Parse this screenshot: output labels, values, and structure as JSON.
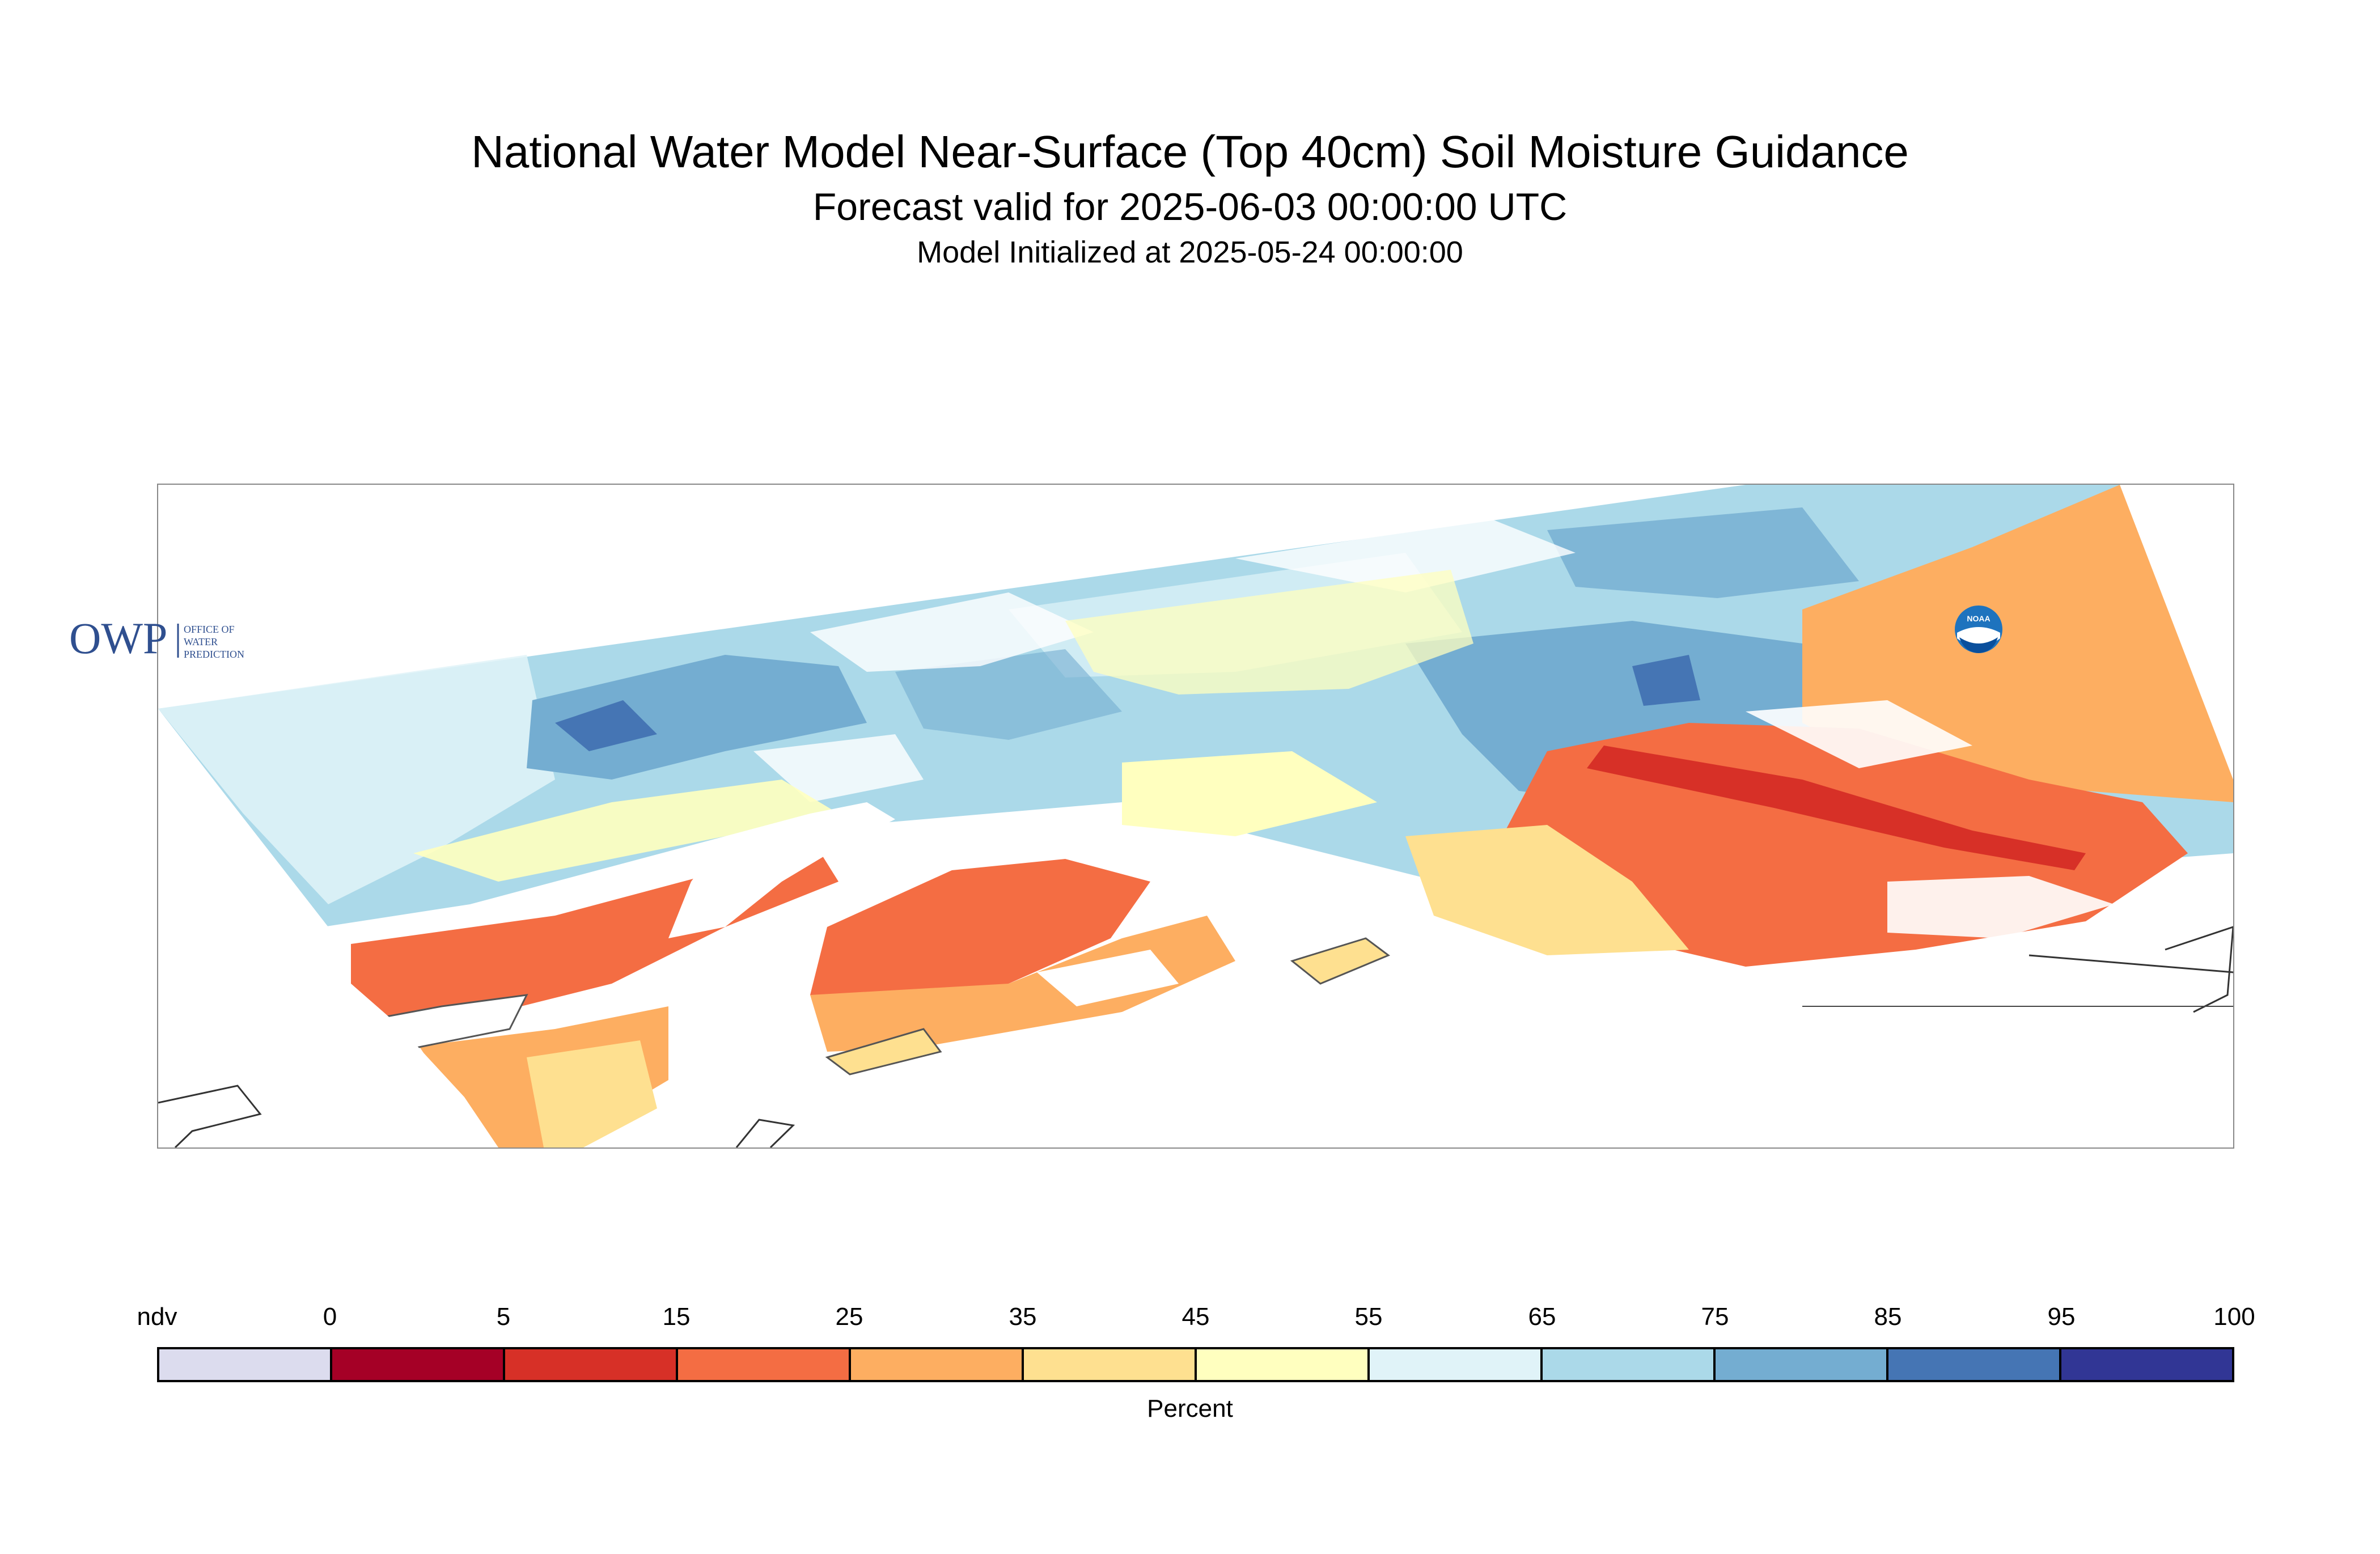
{
  "header": {
    "title": "National Water Model Near-Surface (Top 40cm) Soil Moisture Guidance",
    "valid": "Forecast valid for 2025-06-03 00:00:00 UTC",
    "initialized": "Model Initialized at 2025-05-24 00:00:00"
  },
  "logos": {
    "owp_letters": "OWP",
    "owp_text": [
      "OFFICE OF",
      "WATER",
      "PREDICTION"
    ],
    "noaa_text": "NOAA"
  },
  "legend": {
    "ticks": [
      "ndv",
      "0",
      "5",
      "15",
      "25",
      "35",
      "45",
      "55",
      "65",
      "75",
      "85",
      "95",
      "100"
    ],
    "colors": [
      "#dcdcee",
      "#a50026",
      "#d73027",
      "#f46d43",
      "#fdae61",
      "#fee090",
      "#ffffbf",
      "#e0f3f8",
      "#abd9e9",
      "#74add1",
      "#4575b4",
      "#313695"
    ],
    "units": "Percent"
  }
}
